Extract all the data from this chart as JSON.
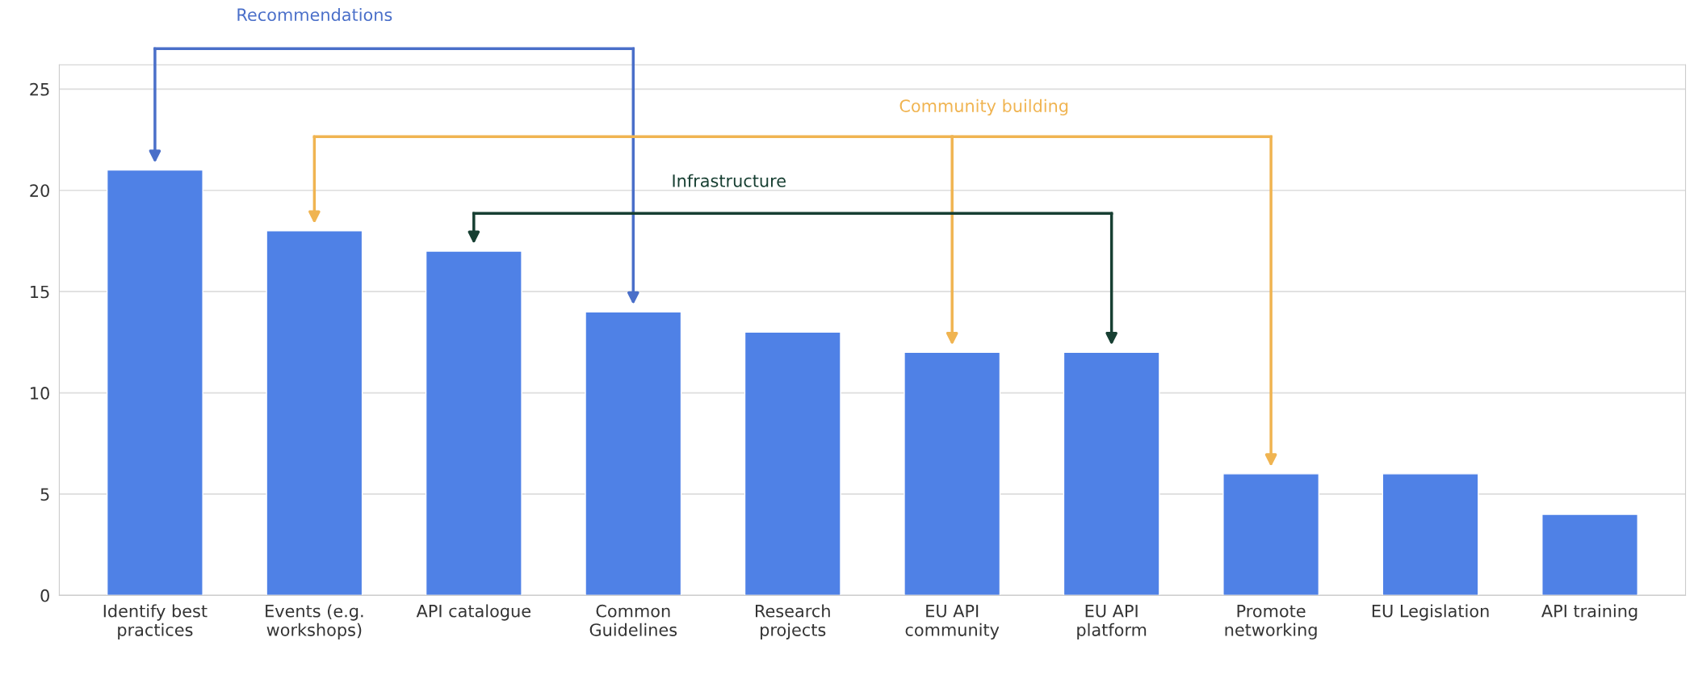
{
  "chart_data": {
    "type": "bar",
    "categories": [
      "Identify best\npractices",
      "Events (e.g.\nworkshops)",
      "API catalogue",
      "Common\nGuidelines",
      "Research\nprojects",
      "EU API\ncommunity",
      "EU API\nplatform",
      "Promote\nnetworking",
      "EU Legislation",
      "API training"
    ],
    "values": [
      21,
      18,
      17,
      14,
      13,
      12,
      12,
      6,
      6,
      4
    ],
    "color": "#4f81e6",
    "ylim": [
      0,
      26.2
    ],
    "yticks": [
      0,
      5,
      10,
      15,
      20,
      25
    ],
    "grid": "y",
    "annotations": [
      "Recommendations",
      "Community building",
      "Infrastructure"
    ]
  }
}
